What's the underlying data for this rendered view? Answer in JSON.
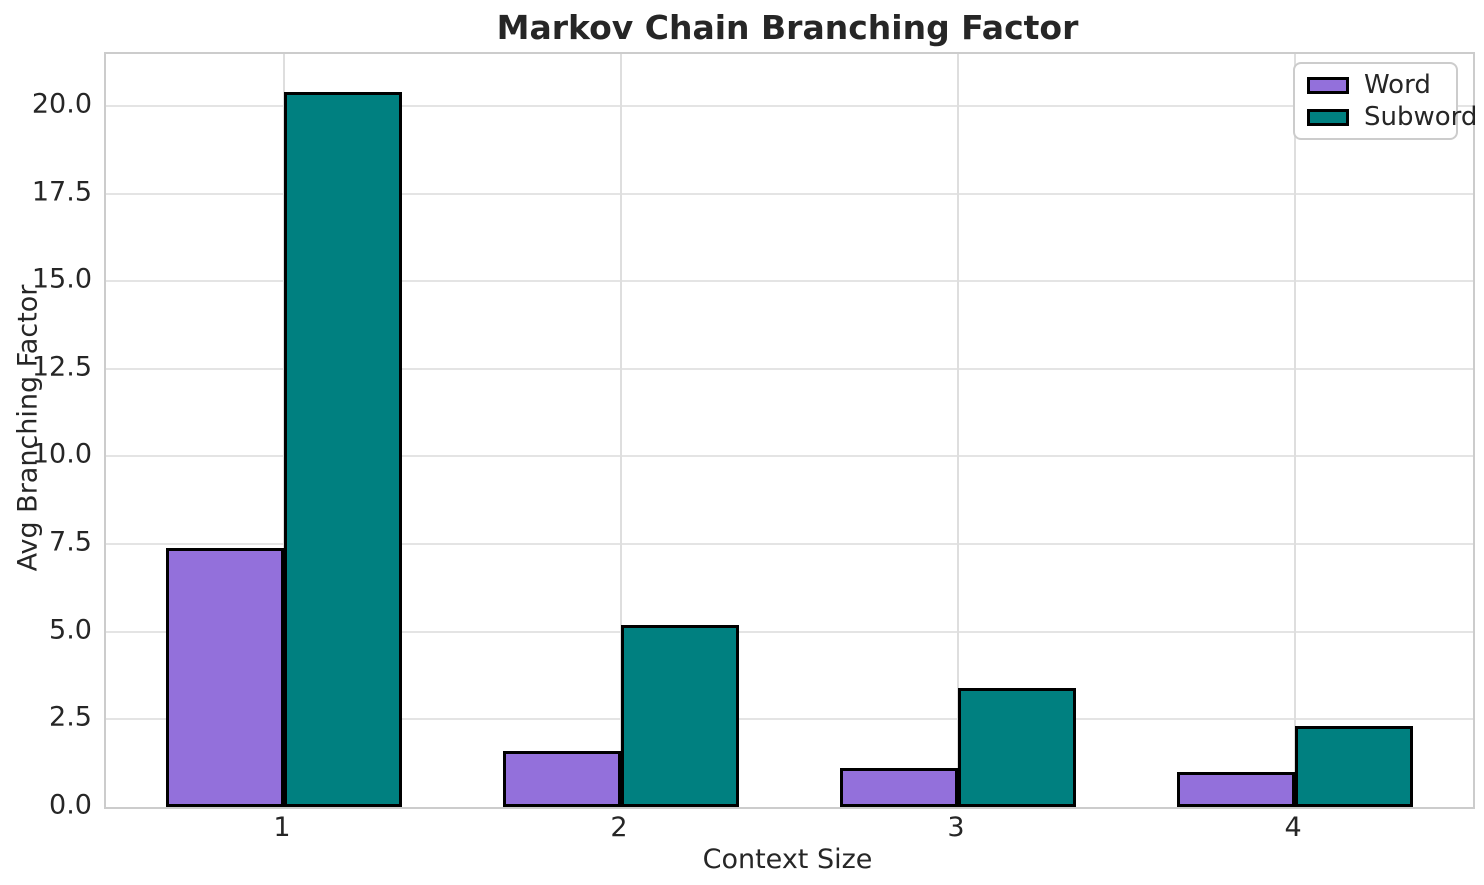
{
  "figure": {
    "background": "#ffffff",
    "text_color": "#262626",
    "grid_color": "#e4e4e4",
    "spine_color": "#cccccc"
  },
  "chart_data": {
    "type": "bar",
    "title": "Markov Chain Branching Factor",
    "xlabel": "Context Size",
    "ylabel": "Avg Branching Factor",
    "categories": [
      "1",
      "2",
      "3",
      "4"
    ],
    "series": [
      {
        "name": "Word",
        "color": "#9370DB",
        "values": [
          7.4,
          1.6,
          1.1,
          1.0
        ]
      },
      {
        "name": "Subword",
        "color": "#008080",
        "values": [
          20.4,
          5.2,
          3.4,
          2.3
        ]
      }
    ],
    "bar_edge_color": "#000000",
    "ylim": [
      0,
      21.5
    ],
    "yticks": [
      0.0,
      2.5,
      5.0,
      7.5,
      10.0,
      12.5,
      15.0,
      17.5,
      20.0
    ],
    "ytick_labels": [
      "0.0",
      "2.5",
      "5.0",
      "7.5",
      "10.0",
      "12.5",
      "15.0",
      "17.5",
      "20.0"
    ],
    "grid": true,
    "legend_position": "upper right",
    "legend_entries": [
      "Word",
      "Subword"
    ]
  }
}
